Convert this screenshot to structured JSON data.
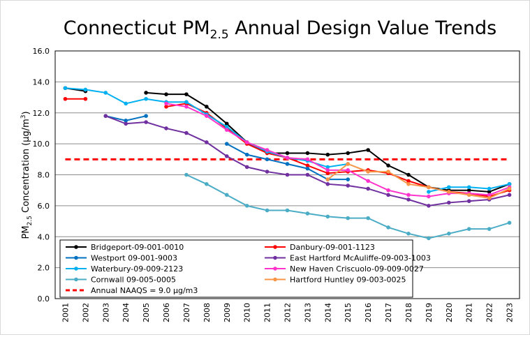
{
  "chart_data": {
    "type": "line",
    "title": "Connecticut PM",
    "title_sub": "2.5",
    "title_rest": " Annual Design Value Trends",
    "ylabel_pre": "PM",
    "ylabel_sub": "2.5",
    "ylabel_mid": " Concentration (µg/m",
    "ylabel_sup": "3",
    "ylabel_end": ")",
    "ylim": [
      0,
      16
    ],
    "yticks": [
      "0.0",
      "2.0",
      "4.0",
      "6.0",
      "8.0",
      "10.0",
      "12.0",
      "14.0",
      "16.0"
    ],
    "grid": true,
    "legend_placement": "bottom-left",
    "x": [
      "2001",
      "2002",
      "2003",
      "2004",
      "2005",
      "2006",
      "2007",
      "2008",
      "2009",
      "2010",
      "2011",
      "2012",
      "2013",
      "2014",
      "2015",
      "2016",
      "2017",
      "2018",
      "2019",
      "2020",
      "2021",
      "2022",
      "2023"
    ],
    "series": [
      {
        "name": "Bridgeport-09-001-0010",
        "color": "#000000",
        "values": [
          13.6,
          13.4,
          null,
          null,
          13.3,
          13.2,
          13.2,
          12.4,
          11.3,
          10.1,
          9.4,
          9.4,
          9.4,
          9.3,
          9.4,
          9.6,
          8.6,
          8.0,
          7.2,
          7.0,
          7.0,
          6.9,
          7.4
        ]
      },
      {
        "name": "Danbury-09-001-1123",
        "color": "#ff0000",
        "values": [
          12.9,
          12.9,
          null,
          null,
          null,
          12.4,
          12.6,
          12.0,
          11.0,
          10.0,
          9.4,
          9.1,
          8.6,
          8.1,
          8.2,
          8.3,
          8.1,
          7.6,
          7.2,
          6.9,
          6.8,
          6.6,
          7.0
        ]
      },
      {
        "name": "Westport 09-001-9003",
        "color": "#0070c0",
        "values": [
          null,
          null,
          11.8,
          11.5,
          11.8,
          null,
          null,
          null,
          10.0,
          9.3,
          9.0,
          8.7,
          8.4,
          7.7,
          7.7,
          null,
          null,
          null,
          null,
          null,
          null,
          null,
          null
        ]
      },
      {
        "name": "East Hartford McAuliffe-09-003-1003",
        "color": "#7030a0",
        "values": [
          null,
          null,
          11.8,
          11.3,
          11.4,
          11.0,
          10.7,
          10.1,
          9.2,
          8.5,
          8.2,
          8.0,
          8.0,
          7.4,
          7.3,
          7.1,
          6.7,
          6.4,
          6.0,
          6.2,
          6.3,
          6.4,
          6.7
        ]
      },
      {
        "name": "Waterbury-09-009-2123",
        "color": "#00b0f0",
        "values": [
          13.6,
          13.5,
          13.3,
          12.6,
          12.9,
          12.7,
          12.7,
          11.9,
          11.1,
          10.1,
          9.5,
          9.1,
          8.9,
          8.5,
          8.7,
          null,
          null,
          null,
          6.9,
          7.2,
          7.2,
          7.1,
          7.4
        ]
      },
      {
        "name": "New Haven Criscuolo-09-009-0027",
        "color": "#ff33cc",
        "values": [
          null,
          null,
          null,
          null,
          null,
          12.6,
          12.4,
          11.8,
          10.9,
          10.1,
          9.6,
          9.1,
          9.0,
          8.3,
          8.3,
          7.6,
          7.0,
          6.7,
          6.6,
          6.8,
          6.8,
          6.7,
          7.2
        ]
      },
      {
        "name": "Cornwall 09-005-0005",
        "color": "#4bacc6",
        "values": [
          null,
          null,
          null,
          null,
          null,
          null,
          8.0,
          7.4,
          6.7,
          6.0,
          5.7,
          5.7,
          5.5,
          5.3,
          5.2,
          5.2,
          4.6,
          4.2,
          3.9,
          4.2,
          4.5,
          4.5,
          4.9
        ]
      },
      {
        "name": "Hartford Huntley 09-003-0025",
        "color": "#f79646",
        "values": [
          null,
          null,
          null,
          null,
          null,
          null,
          null,
          null,
          null,
          null,
          null,
          null,
          null,
          7.7,
          8.7,
          8.2,
          8.2,
          7.4,
          7.2,
          6.9,
          6.7,
          6.5,
          7.1
        ]
      }
    ],
    "reference_line": {
      "name": "Annual NAAQS = 9.0 µg/m3",
      "value": 9.0,
      "color": "#ff0000",
      "style": "dashed"
    }
  }
}
